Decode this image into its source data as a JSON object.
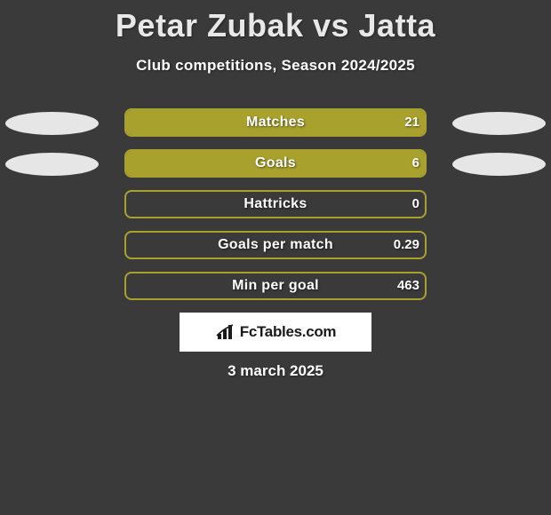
{
  "title": "Petar Zubak vs Jatta",
  "subtitle": "Club competitions, Season 2024/2025",
  "date": "3 march 2025",
  "logo_text": "FcTables.com",
  "colors": {
    "background": "#3a3a3a",
    "bar_fill": "#a9a12e",
    "bar_border": "#a9a12e",
    "ellipse": "#e6e6e6",
    "text": "#ffffff"
  },
  "stats": [
    {
      "label": "Matches",
      "value": "21",
      "fill_pct": 100,
      "left_ellipse": true,
      "right_ellipse": true
    },
    {
      "label": "Goals",
      "value": "6",
      "fill_pct": 100,
      "left_ellipse": true,
      "right_ellipse": true
    },
    {
      "label": "Hattricks",
      "value": "0",
      "fill_pct": 0,
      "left_ellipse": false,
      "right_ellipse": false
    },
    {
      "label": "Goals per match",
      "value": "0.29",
      "fill_pct": 0,
      "left_ellipse": false,
      "right_ellipse": false
    },
    {
      "label": "Min per goal",
      "value": "463",
      "fill_pct": 0,
      "left_ellipse": false,
      "right_ellipse": false
    }
  ]
}
